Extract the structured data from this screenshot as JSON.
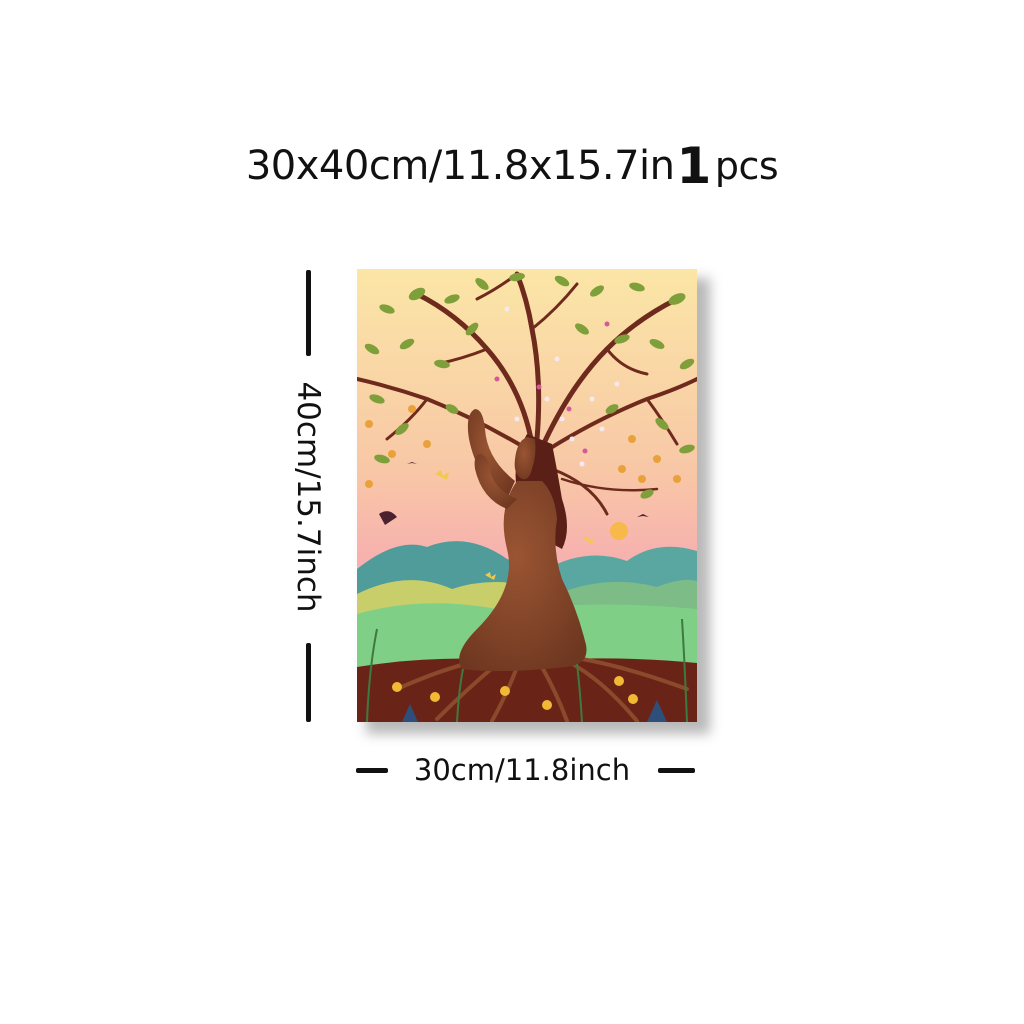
{
  "headline": {
    "size_text": "30x40cm/11.8x15.7in",
    "quantity_number": "1",
    "quantity_unit": "pcs"
  },
  "dimensions": {
    "height_label": "40cm/15.7inch",
    "width_label": "30cm/11.8inch"
  },
  "colors": {
    "text": "#111111",
    "sky_top": "#fbe6a6",
    "sky_bottom": "#f7a6b2",
    "soil": "#6a2417",
    "figure": "#7a3f25",
    "branches": "#6e2a1c",
    "leaves": "#7e9f3a",
    "hills": "#4f9c9a"
  }
}
